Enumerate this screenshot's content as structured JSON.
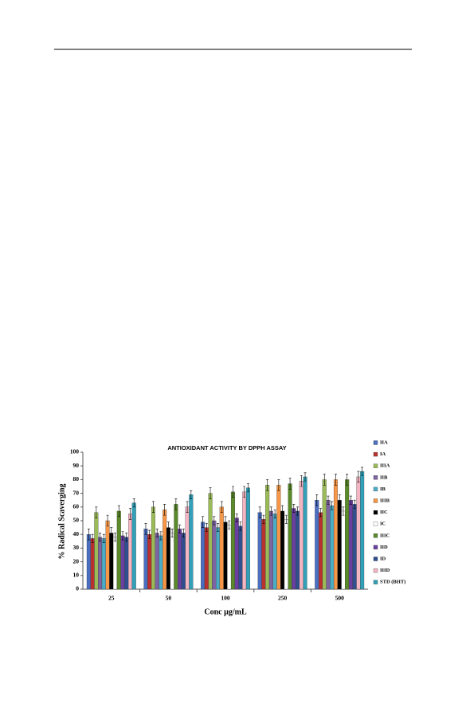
{
  "chart_data": {
    "type": "bar",
    "title": "ANTIOXIDANT ACTIVITY BY DPPH ASSAY",
    "y_label": "% Radical Scaverging",
    "x_label": "Conc µg/mL",
    "categories": [
      "25",
      "50",
      "100",
      "250",
      "500"
    ],
    "ylim": [
      0,
      100
    ],
    "yticks": [
      0,
      10,
      20,
      30,
      40,
      50,
      60,
      70,
      80,
      90,
      100
    ],
    "legend": "right",
    "series": [
      {
        "name": "IIA",
        "color": "#4a6fc0",
        "values": [
          40,
          44,
          49,
          56,
          65
        ],
        "errors": [
          4,
          4,
          4,
          4,
          4
        ]
      },
      {
        "name": "IA",
        "color": "#b8312f",
        "values": [
          37,
          40,
          45,
          51,
          56
        ],
        "errors": [
          3,
          3,
          3,
          3,
          3
        ]
      },
      {
        "name": "IIIA",
        "color": "#9bbb59",
        "values": [
          56,
          60,
          70,
          76,
          80
        ],
        "errors": [
          4,
          4,
          4,
          4,
          4
        ]
      },
      {
        "name": "IIB",
        "color": "#7f64a2",
        "values": [
          38,
          41,
          50,
          57,
          65
        ],
        "errors": [
          3,
          3,
          3,
          3,
          3
        ]
      },
      {
        "name": "IB",
        "color": "#4bacc6",
        "values": [
          37,
          39,
          45,
          55,
          61
        ],
        "errors": [
          3,
          3,
          3,
          3,
          3
        ]
      },
      {
        "name": "IIIB",
        "color": "#f79646",
        "values": [
          50,
          58,
          60,
          76,
          80
        ],
        "errors": [
          4,
          4,
          4,
          4,
          4
        ]
      },
      {
        "name": "IIC",
        "color": "#000000",
        "values": [
          41,
          45,
          49,
          57,
          65
        ],
        "errors": [
          4,
          4,
          4,
          4,
          4
        ]
      },
      {
        "name": "IC",
        "color": "#ffffff",
        "values": [
          38,
          41,
          47,
          51,
          57
        ],
        "errors": [
          3,
          3,
          3,
          3,
          3
        ]
      },
      {
        "name": "IIIC",
        "color": "#5a8a2a",
        "values": [
          57,
          62,
          71,
          77,
          80
        ],
        "errors": [
          4,
          4,
          4,
          4,
          4
        ]
      },
      {
        "name": "IID",
        "color": "#6b3fa0",
        "values": [
          39,
          44,
          52,
          59,
          65
        ],
        "errors": [
          3,
          3,
          3,
          3,
          3
        ]
      },
      {
        "name": "ID",
        "color": "#2f4f8f",
        "values": [
          38,
          41,
          46,
          57,
          62
        ],
        "errors": [
          3,
          3,
          3,
          3,
          3
        ]
      },
      {
        "name": "IIID",
        "color": "#f4b6c2",
        "values": [
          55,
          60,
          71,
          79,
          82
        ],
        "errors": [
          4,
          4,
          4,
          4,
          4
        ]
      },
      {
        "name": "STD (BHT)",
        "color": "#31a0b8",
        "values": [
          63,
          69,
          74,
          82,
          86
        ],
        "errors": [
          3,
          3,
          3,
          3,
          3
        ]
      }
    ]
  }
}
